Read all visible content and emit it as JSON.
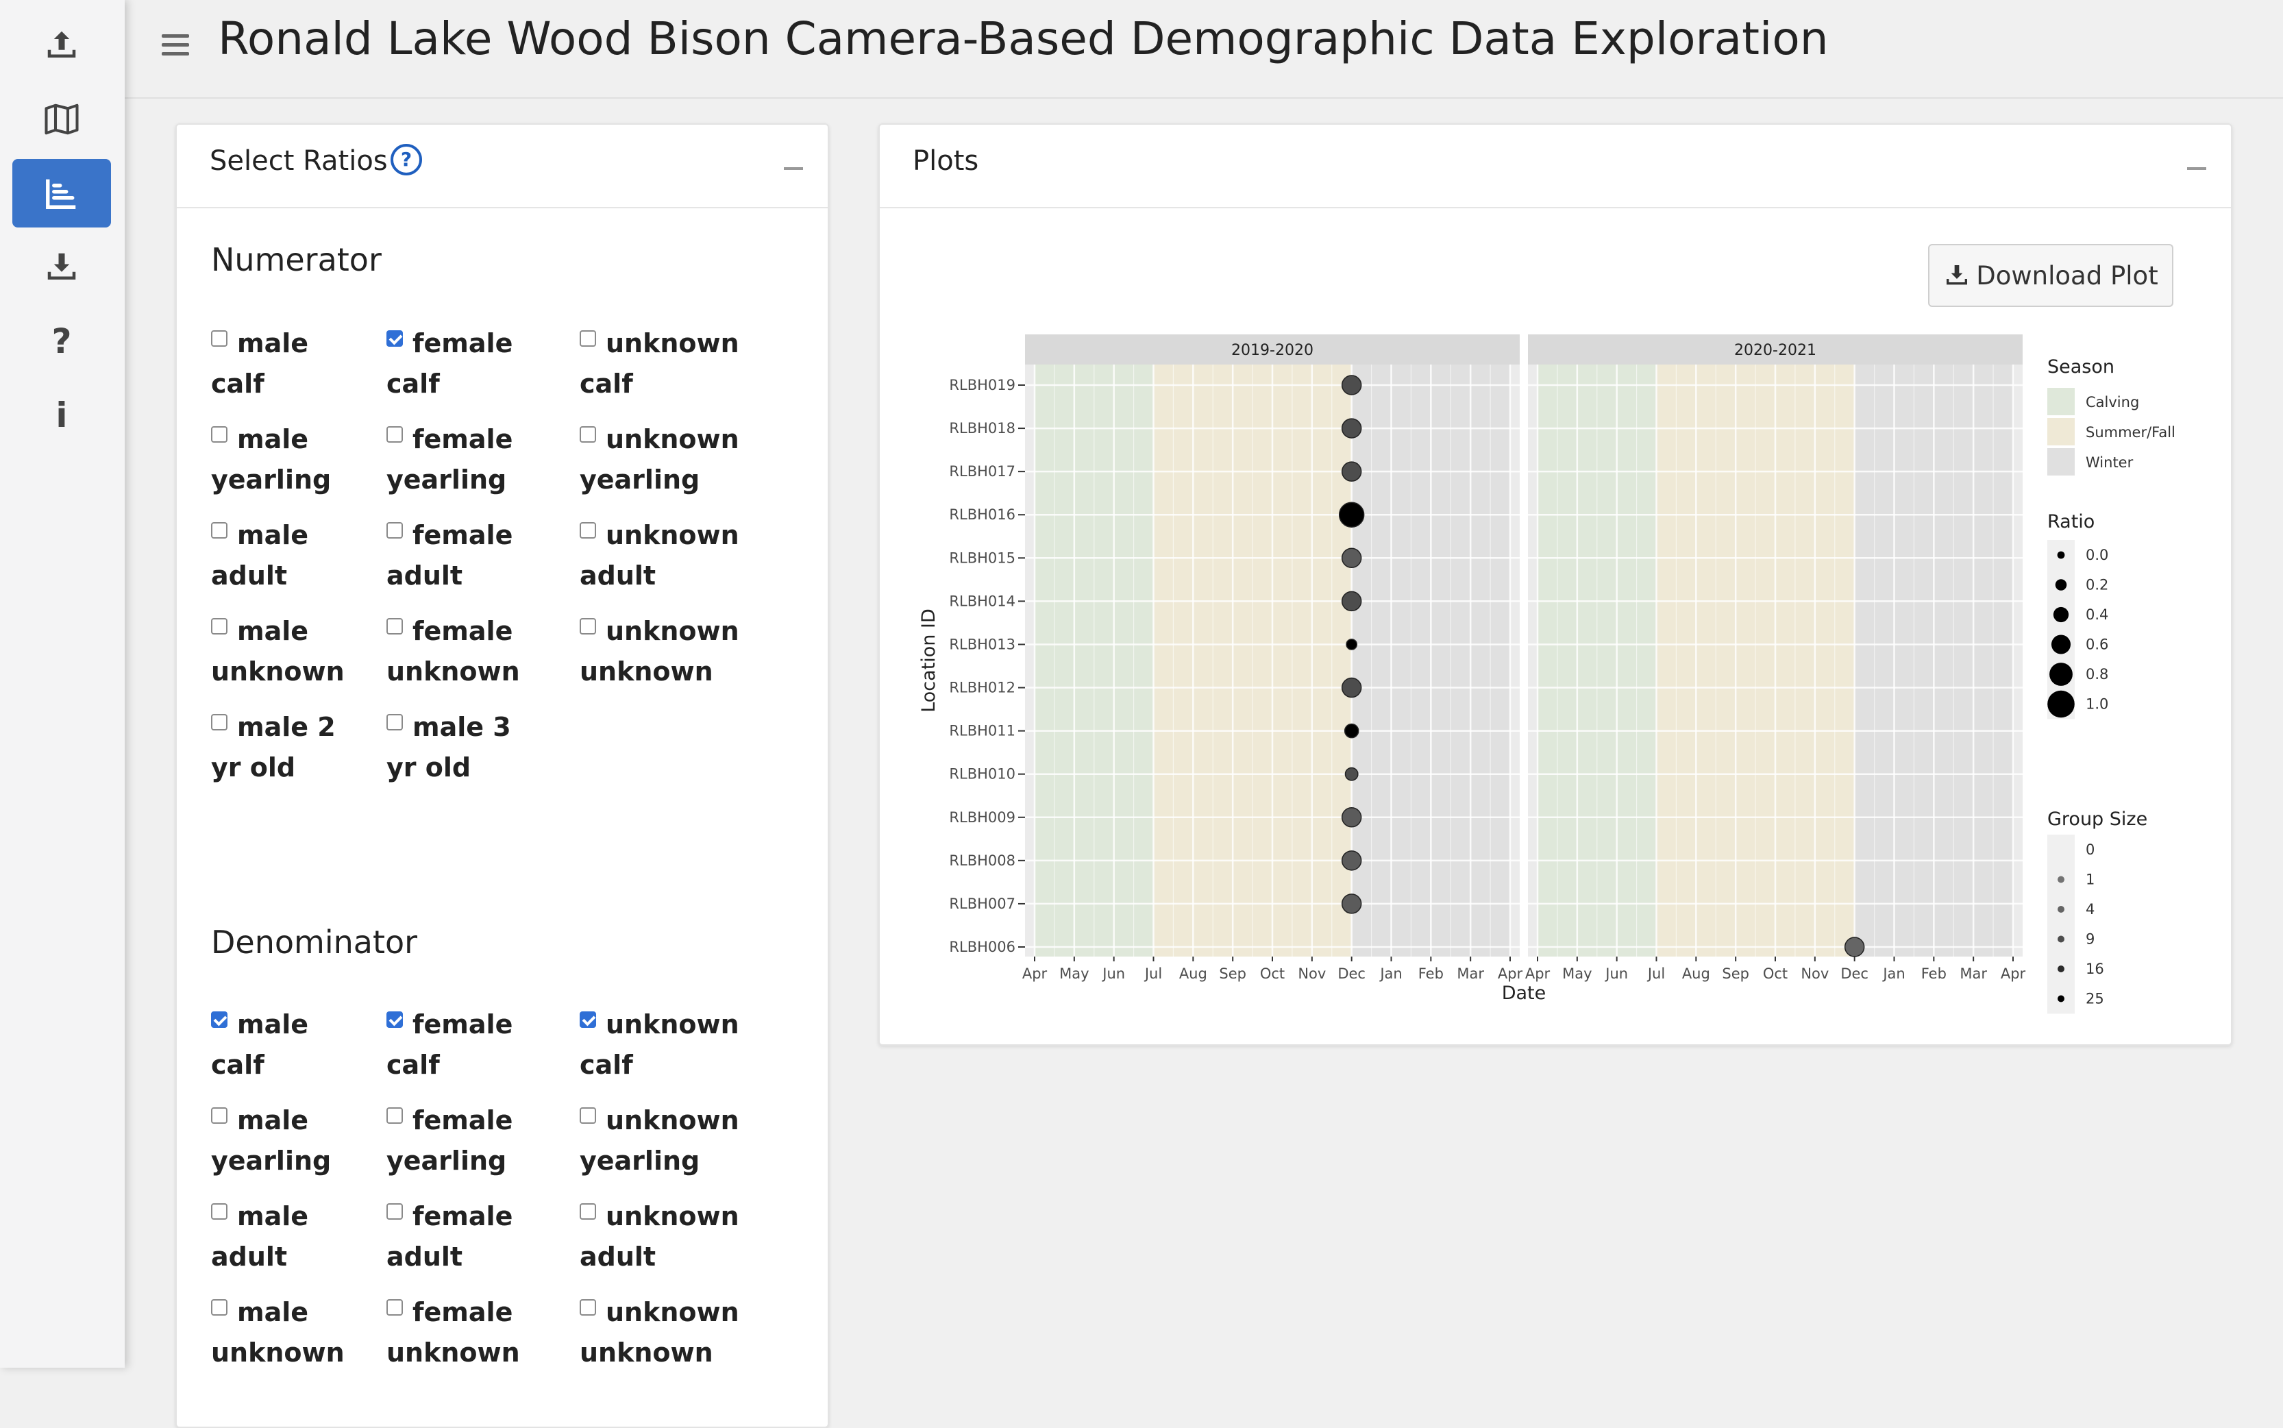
{
  "app": {
    "title": "Ronald Lake Wood Bison Camera-Based Demographic Data Exploration"
  },
  "sidebar": {
    "items": [
      {
        "icon": "upload-icon",
        "active": false
      },
      {
        "icon": "map-icon",
        "active": false
      },
      {
        "icon": "chart-icon",
        "active": true
      },
      {
        "icon": "download-icon",
        "active": false
      },
      {
        "icon": "question-icon",
        "active": false
      },
      {
        "icon": "info-icon",
        "active": false
      }
    ]
  },
  "ratios_card": {
    "title": "Select Ratios",
    "help_label": "?",
    "numerator": {
      "title": "Numerator",
      "options": [
        {
          "line1": "male",
          "line2": "calf",
          "checked": false
        },
        {
          "line1": "female",
          "line2": "calf",
          "checked": true
        },
        {
          "line1": "unknown",
          "line2": "calf",
          "checked": false
        },
        {
          "line1": "male",
          "line2": "yearling",
          "checked": false
        },
        {
          "line1": "female",
          "line2": "yearling",
          "checked": false
        },
        {
          "line1": "unknown",
          "line2": "yearling",
          "checked": false
        },
        {
          "line1": "male",
          "line2": "adult",
          "checked": false
        },
        {
          "line1": "female",
          "line2": "adult",
          "checked": false
        },
        {
          "line1": "unknown",
          "line2": "adult",
          "checked": false
        },
        {
          "line1": "male",
          "line2": "unknown",
          "checked": false
        },
        {
          "line1": "female",
          "line2": "unknown",
          "checked": false
        },
        {
          "line1": "unknown",
          "line2": "unknown",
          "checked": false
        },
        {
          "line1": "male 2",
          "line2": "yr old",
          "checked": false
        },
        {
          "line1": "male 3",
          "line2": "yr old",
          "checked": false
        }
      ]
    },
    "denominator": {
      "title": "Denominator",
      "options": [
        {
          "line1": "male",
          "line2": "calf",
          "checked": true
        },
        {
          "line1": "female",
          "line2": "calf",
          "checked": true
        },
        {
          "line1": "unknown",
          "line2": "calf",
          "checked": true
        },
        {
          "line1": "male",
          "line2": "yearling",
          "checked": false
        },
        {
          "line1": "female",
          "line2": "yearling",
          "checked": false
        },
        {
          "line1": "unknown",
          "line2": "yearling",
          "checked": false
        },
        {
          "line1": "male",
          "line2": "adult",
          "checked": false
        },
        {
          "line1": "female",
          "line2": "adult",
          "checked": false
        },
        {
          "line1": "unknown",
          "line2": "adult",
          "checked": false
        },
        {
          "line1": "male",
          "line2": "unknown",
          "checked": false
        },
        {
          "line1": "female",
          "line2": "unknown",
          "checked": false
        },
        {
          "line1": "unknown",
          "line2": "unknown",
          "checked": false
        }
      ]
    }
  },
  "plots_card": {
    "title": "Plots",
    "download_label": "Download Plot"
  },
  "chart_data": {
    "type": "scatter",
    "xlabel": "Date",
    "ylabel": "Location ID",
    "panels": [
      "2019-2020",
      "2020-2021"
    ],
    "x_tick_labels": [
      "Apr",
      "May",
      "Jun",
      "Jul",
      "Aug",
      "Sep",
      "Oct",
      "Nov",
      "Dec",
      "Jan",
      "Feb",
      "Mar",
      "Apr"
    ],
    "y_categories": [
      "RLBH019",
      "RLBH018",
      "RLBH017",
      "RLBH016",
      "RLBH015",
      "RLBH014",
      "RLBH013",
      "RLBH012",
      "RLBH011",
      "RLBH010",
      "RLBH009",
      "RLBH008",
      "RLBH007",
      "RLBH006"
    ],
    "season_bands": [
      {
        "season": "Calving",
        "from_month": 0,
        "to_month": 3,
        "color": "#dfe8da"
      },
      {
        "season": "Summer/Fall",
        "from_month": 3,
        "to_month": 8,
        "color": "#efe9d6"
      },
      {
        "season": "Winter",
        "from_month": 8,
        "to_month": 12,
        "color": "#e0e0e0"
      }
    ],
    "points": [
      {
        "panel": "2019-2020",
        "location": "RLBH019",
        "date": "Dec 2019",
        "ratio": 0.5,
        "group_size": 9
      },
      {
        "panel": "2019-2020",
        "location": "RLBH018",
        "date": "Dec 2019",
        "ratio": 0.5,
        "group_size": 9
      },
      {
        "panel": "2019-2020",
        "location": "RLBH017",
        "date": "Dec 2019",
        "ratio": 0.5,
        "group_size": 9
      },
      {
        "panel": "2019-2020",
        "location": "RLBH016",
        "date": "Dec 2019",
        "ratio": 0.75,
        "group_size": 25
      },
      {
        "panel": "2019-2020",
        "location": "RLBH015",
        "date": "Dec 2019",
        "ratio": 0.5,
        "group_size": 6
      },
      {
        "panel": "2019-2020",
        "location": "RLBH014",
        "date": "Dec 2019",
        "ratio": 0.5,
        "group_size": 9
      },
      {
        "panel": "2019-2020",
        "location": "RLBH013",
        "date": "Dec 2019",
        "ratio": 0.1,
        "group_size": 25
      },
      {
        "panel": "2019-2020",
        "location": "RLBH012",
        "date": "Dec 2019",
        "ratio": 0.5,
        "group_size": 9
      },
      {
        "panel": "2019-2020",
        "location": "RLBH011",
        "date": "Dec 2019",
        "ratio": 0.25,
        "group_size": 25
      },
      {
        "panel": "2019-2020",
        "location": "RLBH010",
        "date": "Dec 2019",
        "ratio": 0.2,
        "group_size": 9
      },
      {
        "panel": "2019-2020",
        "location": "RLBH009",
        "date": "Dec 2019",
        "ratio": 0.5,
        "group_size": 6
      },
      {
        "panel": "2019-2020",
        "location": "RLBH008",
        "date": "Dec 2019",
        "ratio": 0.5,
        "group_size": 6
      },
      {
        "panel": "2019-2020",
        "location": "RLBH007",
        "date": "Dec 2019",
        "ratio": 0.5,
        "group_size": 6
      },
      {
        "panel": "2020-2021",
        "location": "RLBH006",
        "date": "Dec 2020",
        "ratio": 0.5,
        "group_size": 4
      }
    ],
    "legend": {
      "season": {
        "title": "Season",
        "items": [
          {
            "label": "Calving",
            "color": "#dfe8da"
          },
          {
            "label": "Summer/Fall",
            "color": "#efe9d6"
          },
          {
            "label": "Winter",
            "color": "#e0e0e0"
          }
        ]
      },
      "ratio": {
        "title": "Ratio",
        "items": [
          {
            "label": "0.0",
            "value": 0.0
          },
          {
            "label": "0.2",
            "value": 0.2
          },
          {
            "label": "0.4",
            "value": 0.4
          },
          {
            "label": "0.6",
            "value": 0.6
          },
          {
            "label": "0.8",
            "value": 0.8
          },
          {
            "label": "1.0",
            "value": 1.0
          }
        ]
      },
      "group_size": {
        "title": "Group Size",
        "items": [
          {
            "label": "0",
            "value": 0
          },
          {
            "label": "1",
            "value": 1
          },
          {
            "label": "4",
            "value": 4
          },
          {
            "label": "9",
            "value": 9
          },
          {
            "label": "16",
            "value": 16
          },
          {
            "label": "25",
            "value": 25
          }
        ]
      }
    }
  }
}
